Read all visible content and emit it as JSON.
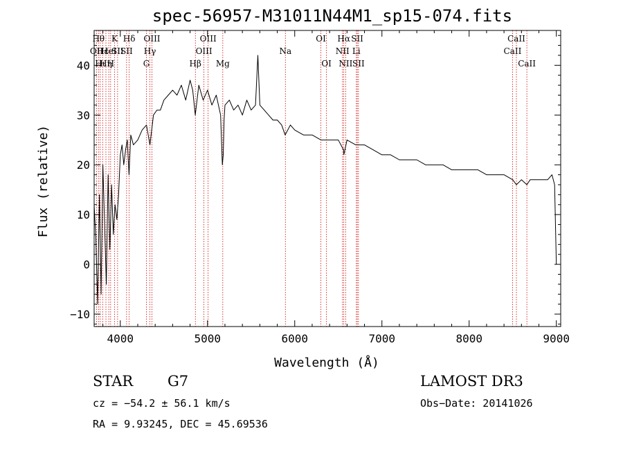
{
  "chart_data": {
    "type": "line",
    "title": "spec-56957-M31011N44M1_sp15-074.fits",
    "xlabel": "Wavelength (Å)",
    "ylabel": "Flux (relative)",
    "xlim": [
      3700,
      9050
    ],
    "ylim": [
      -12.5,
      47
    ],
    "xticks": [
      {
        "value": 4000,
        "label": "4000"
      },
      {
        "value": 5000,
        "label": "5000"
      },
      {
        "value": 6000,
        "label": "6000"
      },
      {
        "value": 7000,
        "label": "7000"
      },
      {
        "value": 8000,
        "label": "8000"
      },
      {
        "value": 9000,
        "label": "9000"
      }
    ],
    "yticks": [
      {
        "value": -10,
        "label": "−10"
      },
      {
        "value": 0,
        "label": "0"
      },
      {
        "value": 10,
        "label": "10"
      },
      {
        "value": 20,
        "label": "20"
      },
      {
        "value": 30,
        "label": "30"
      },
      {
        "value": 40,
        "label": "40"
      }
    ],
    "series": [
      {
        "name": "spectrum",
        "x": [
          3700,
          3720,
          3740,
          3760,
          3780,
          3800,
          3820,
          3840,
          3860,
          3880,
          3900,
          3920,
          3940,
          3960,
          3980,
          4000,
          4020,
          4040,
          4060,
          4080,
          4100,
          4120,
          4150,
          4200,
          4250,
          4300,
          4340,
          4380,
          4420,
          4460,
          4500,
          4550,
          4600,
          4650,
          4700,
          4750,
          4800,
          4830,
          4860,
          4900,
          4950,
          5000,
          5050,
          5100,
          5150,
          5170,
          5180,
          5190,
          5200,
          5250,
          5300,
          5350,
          5400,
          5450,
          5500,
          5550,
          5577,
          5600,
          5650,
          5700,
          5750,
          5800,
          5850,
          5890,
          5950,
          6000,
          6100,
          6200,
          6300,
          6400,
          6500,
          6560,
          6563,
          6600,
          6700,
          6800,
          6900,
          7000,
          7100,
          7200,
          7300,
          7400,
          7500,
          7600,
          7700,
          7800,
          7900,
          8000,
          8100,
          8200,
          8300,
          8400,
          8500,
          8542,
          8600,
          8662,
          8700,
          8800,
          8900,
          8950,
          8980,
          9000
        ],
        "y": [
          12,
          5,
          -8,
          14,
          -6,
          20,
          8,
          -4,
          18,
          3,
          16,
          6,
          12,
          9,
          14,
          22,
          24,
          20,
          23,
          25,
          18,
          26,
          24,
          25,
          27,
          28,
          24,
          30,
          31,
          31,
          33,
          34,
          35,
          34,
          36,
          33,
          37,
          35,
          30,
          36,
          33,
          35,
          32,
          34,
          30,
          20,
          22,
          29,
          32,
          33,
          31,
          32,
          30,
          33,
          31,
          32,
          42,
          32,
          31,
          30,
          29,
          29,
          28,
          26,
          28,
          27,
          26,
          26,
          25,
          25,
          25,
          23,
          22,
          25,
          24,
          24,
          23,
          22,
          22,
          21,
          21,
          21,
          20,
          20,
          20,
          19,
          19,
          19,
          19,
          18,
          18,
          18,
          17,
          16,
          17,
          16,
          17,
          17,
          17,
          18,
          16,
          0
        ]
      }
    ],
    "line_colors": {
      "spectrum": "#000000",
      "markers": "#cc0000",
      "axes": "#000000"
    },
    "line_labels": [
      {
        "x": 3728,
        "row": 2,
        "text": "OII"
      },
      {
        "x": 3750,
        "row": 1,
        "text": "Hθ"
      },
      {
        "x": 3770,
        "row": 3,
        "text": "Hι"
      },
      {
        "x": 3798,
        "row": 2,
        "text": "Hε"
      },
      {
        "x": 3835,
        "row": 3,
        "text": "Hη"
      },
      {
        "x": 3868,
        "row": 2,
        "text": "HeI"
      },
      {
        "x": 3889,
        "row": 3,
        "text": "H"
      },
      {
        "x": 3934,
        "row": 1,
        "text": "K"
      },
      {
        "x": 3969,
        "row": 2,
        "text": "SII"
      },
      {
        "x": 4102,
        "row": 1,
        "text": "Hδ"
      },
      {
        "x": 4072,
        "row": 2,
        "text": "SII"
      },
      {
        "x": 4300,
        "row": 3,
        "text": "G"
      },
      {
        "x": 4340,
        "row": 2,
        "text": "Hγ"
      },
      {
        "x": 4363,
        "row": 1,
        "text": "OIII"
      },
      {
        "x": 4861,
        "row": 3,
        "text": "Hβ"
      },
      {
        "x": 4959,
        "row": 2,
        "text": "OIII"
      },
      {
        "x": 5007,
        "row": 1,
        "text": "OIII"
      },
      {
        "x": 5175,
        "row": 3,
        "text": "Mg"
      },
      {
        "x": 5893,
        "row": 2,
        "text": "Na"
      },
      {
        "x": 6300,
        "row": 1,
        "text": "OI"
      },
      {
        "x": 6364,
        "row": 3,
        "text": "OI"
      },
      {
        "x": 6548,
        "row": 2,
        "text": "NII"
      },
      {
        "x": 6563,
        "row": 1,
        "text": "Hα"
      },
      {
        "x": 6584,
        "row": 3,
        "text": "NII"
      },
      {
        "x": 6707,
        "row": 2,
        "text": "Li"
      },
      {
        "x": 6717,
        "row": 1,
        "text": "SII"
      },
      {
        "x": 6731,
        "row": 3,
        "text": "SII"
      },
      {
        "x": 8498,
        "row": 2,
        "text": "CaII"
      },
      {
        "x": 8542,
        "row": 1,
        "text": "CaII"
      },
      {
        "x": 8662,
        "row": 3,
        "text": "CaII"
      }
    ]
  },
  "info": {
    "object_class": "STAR",
    "subclass": "G7",
    "survey": "LAMOST DR3",
    "redshift": "cz = −54.2 ± 56.1 km/s",
    "obs_date": "Obs−Date: 20141026",
    "coords": "RA =   9.93245, DEC =  45.69536"
  }
}
